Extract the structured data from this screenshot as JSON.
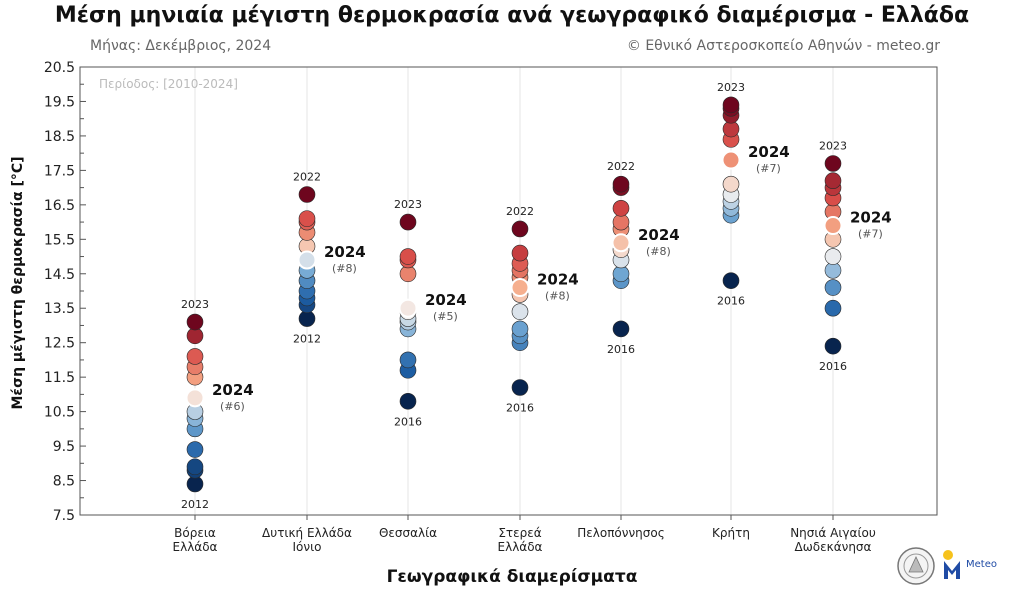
{
  "header": {
    "title": "Μέση μηνιαία μέγιστη θερμοκρασία ανά γεωγραφικό διαμέρισμα - Ελλάδα",
    "month": "Μήνας: Δεκέμβριος, 2024",
    "credit": "© Εθνικό Αστεροσκοπείο Αθηνών - meteo.gr",
    "period": "Περίοδος: [2010-2024]"
  },
  "logos": {
    "seal_text": "ΕΘΝΙΚΟ ΑΣΤΕΡΟΣΚΟΠΕΙΟ ΑΘΗΝΩΝ",
    "meteo_text": "Meteo"
  },
  "colors": {
    "cold_dark": "#0b2d5c",
    "cold": "#3f82bd",
    "neutral": "#f7f4f1",
    "warm": "#f3a07e",
    "warm_dark": "#7f0d1f"
  },
  "chart_data": {
    "type": "scatter",
    "title": "Μέση μηνιαία μέγιστη θερμοκρασία ανά γεωγραφικό διαμέρισμα - Ελλάδα",
    "xlabel": "Γεωγραφικά διαμερίσματα",
    "ylabel": "Μέση μέγιστη θερμοκρασία [°C]",
    "ylim": [
      7.5,
      20.5
    ],
    "yticks": [
      "7.5",
      "8.5",
      "9.5",
      "10.5",
      "11.5",
      "12.5",
      "13.5",
      "14.5",
      "15.5",
      "16.5",
      "17.5",
      "18.5",
      "19.5",
      "20.5"
    ],
    "grid": "vertical",
    "regions": [
      {
        "name": [
          "Βόρεια",
          "Ελλάδα"
        ],
        "values": [
          8.4,
          8.8,
          8.9,
          9.4,
          10.0,
          10.3,
          10.5,
          10.9,
          11.5,
          11.8,
          12.1,
          12.7,
          13.1
        ],
        "min_year": "2012",
        "max_year": "2023",
        "y2024": 10.9,
        "label_2024": "2024",
        "rank": "(#6)"
      },
      {
        "name": [
          "Δυτική Ελλάδα",
          "Ιόνιο"
        ],
        "values": [
          13.2,
          13.6,
          13.8,
          14.0,
          14.3,
          14.6,
          14.9,
          15.3,
          15.7,
          16.0,
          16.1,
          16.8
        ],
        "min_year": "2012",
        "max_year": "2022",
        "y2024": 14.9,
        "label_2024": "2024",
        "rank": "(#8)"
      },
      {
        "name": [
          "Θεσσαλία"
        ],
        "values": [
          10.8,
          11.7,
          12.0,
          12.9,
          13.1,
          13.2,
          13.4,
          13.5,
          14.5,
          14.9,
          15.0,
          16.0
        ],
        "min_year": "2016",
        "max_year": "2023",
        "y2024": 13.5,
        "label_2024": "2024",
        "rank": "(#5)"
      },
      {
        "name": [
          "Στερεά",
          "Ελλάδα"
        ],
        "values": [
          11.2,
          12.5,
          12.7,
          12.9,
          13.4,
          13.9,
          14.1,
          14.4,
          14.6,
          14.8,
          15.1,
          15.8
        ],
        "min_year": "2016",
        "max_year": "2022",
        "y2024": 14.1,
        "label_2024": "2024",
        "rank": "(#8)"
      },
      {
        "name": [
          "Πελοπόννησος"
        ],
        "values": [
          12.9,
          14.3,
          14.5,
          14.9,
          15.2,
          15.4,
          15.8,
          16.0,
          16.4,
          17.0,
          17.1
        ],
        "min_year": "2016",
        "max_year": "2022",
        "y2024": 15.4,
        "label_2024": "2024",
        "rank": "(#8)"
      },
      {
        "name": [
          "Κρήτη"
        ],
        "values": [
          14.3,
          16.2,
          16.4,
          16.6,
          16.8,
          17.1,
          17.8,
          18.4,
          18.7,
          19.1,
          19.3,
          19.4
        ],
        "min_year": "2016",
        "max_year": "2023",
        "y2024": 17.8,
        "label_2024": "2024",
        "rank": "(#7)"
      },
      {
        "name": [
          "Νησιά Αιγαίου",
          "Δωδεκάνησα"
        ],
        "values": [
          12.4,
          13.5,
          14.1,
          14.6,
          15.0,
          15.5,
          15.9,
          16.3,
          16.7,
          17.0,
          17.2,
          17.7
        ],
        "min_year": "2016",
        "max_year": "2023",
        "y2024": 15.9,
        "label_2024": "2024",
        "rank": "(#7)"
      }
    ]
  }
}
